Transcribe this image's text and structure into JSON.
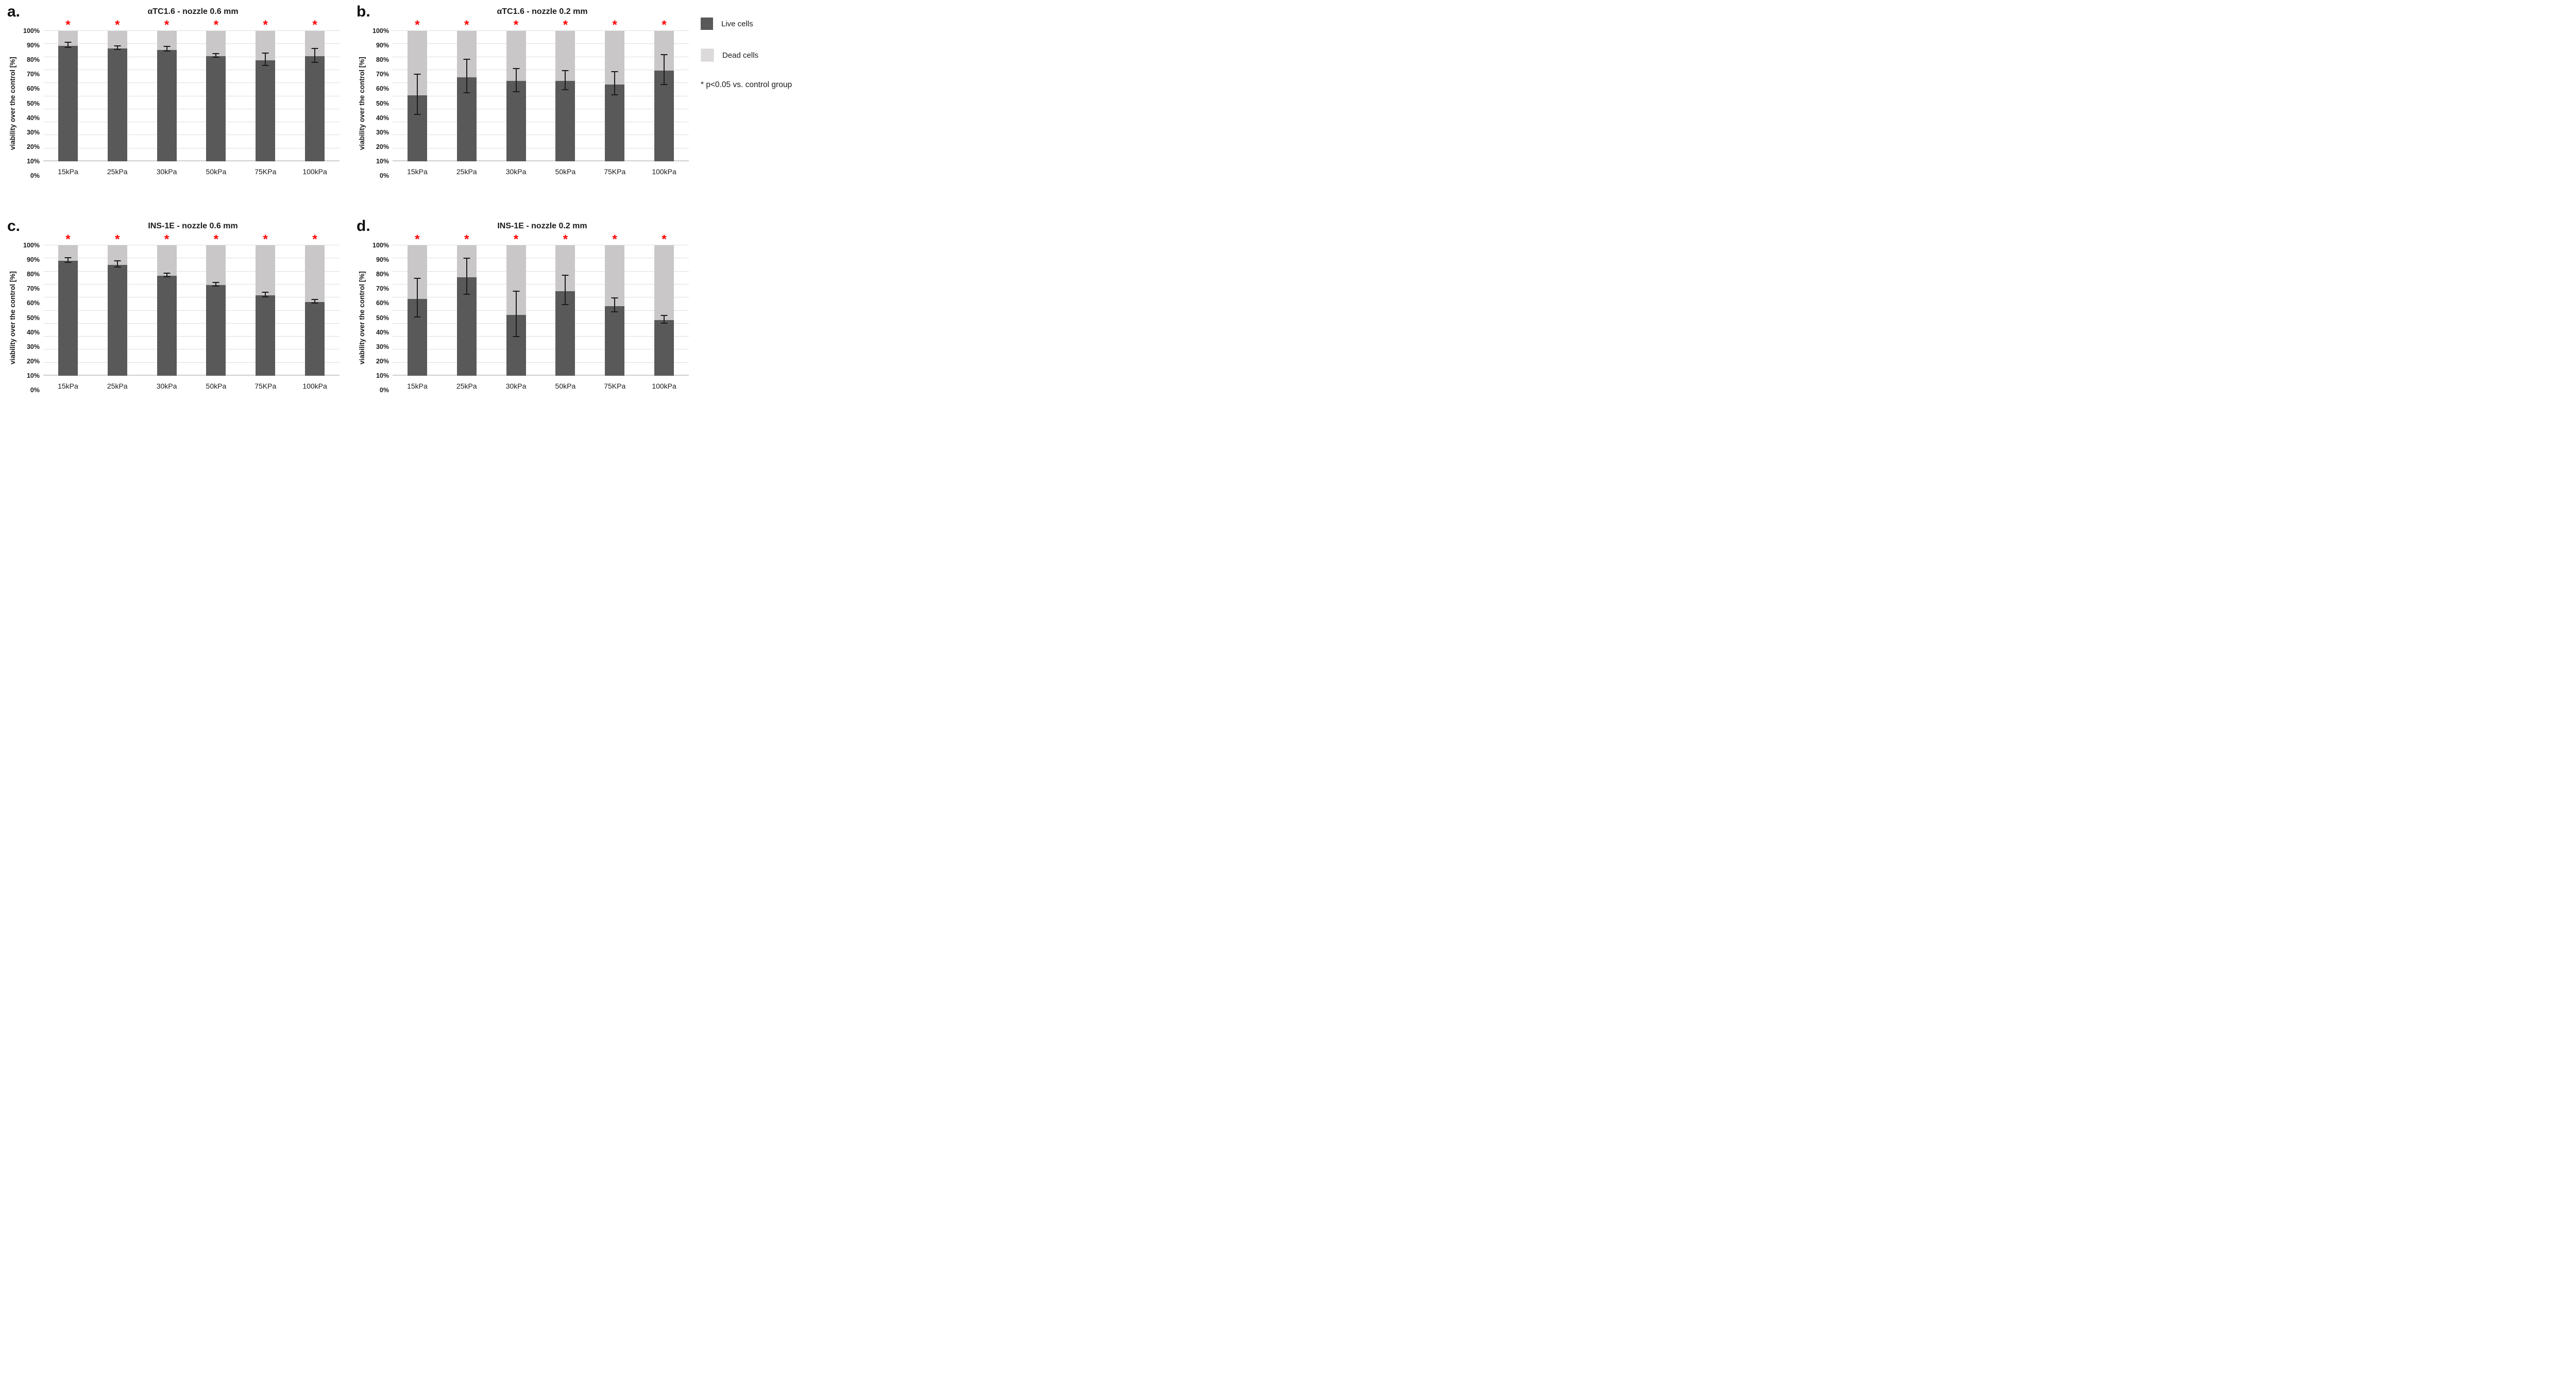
{
  "axis": {
    "ylabel": "viability over the control [%]",
    "yticks": [
      "0%",
      "10%",
      "20%",
      "30%",
      "40%",
      "50%",
      "60%",
      "70%",
      "80%",
      "90%",
      "100%"
    ],
    "ymin": 0,
    "ymax": 100,
    "grid": true
  },
  "categories": [
    "15kPa",
    "25kPa",
    "30kPa",
    "50kPa",
    "75KPa",
    "100kPa"
  ],
  "legend": {
    "items": [
      {
        "label": "Live cells",
        "color": "#595959"
      },
      {
        "label": "Dead cells",
        "color": "#d2d0d0"
      }
    ]
  },
  "significance_note": "* p<0.05 vs. control group",
  "colors": {
    "live": "#595959",
    "dead": "#c9c7c7",
    "asterisk": "#ff0000",
    "error_bar": "#1c1c1c",
    "gridline": "#dedede"
  },
  "chart_data": [
    {
      "type": "bar",
      "stacked": true,
      "panel_label": "a.",
      "title": "αTC1.6 - nozzle 0.6 mm",
      "categories": [
        "15kPa",
        "25kPa",
        "30kPa",
        "50kPa",
        "75KPa",
        "100kPa"
      ],
      "series": [
        {
          "name": "Live cells",
          "values": [
            88.5,
            86.5,
            85.5,
            80.5,
            77.5,
            80.5
          ]
        },
        {
          "name": "Dead cells",
          "values": [
            11.5,
            13.5,
            14.5,
            19.5,
            22.5,
            19.5
          ]
        }
      ],
      "error_bars_pct": [
        1.5,
        1.0,
        1.5,
        1.0,
        4.5,
        5.0
      ],
      "significant": [
        true,
        true,
        true,
        true,
        true,
        true
      ],
      "xlabel": "",
      "ylabel": "viability over the control [%]",
      "ylim": [
        0,
        100
      ]
    },
    {
      "type": "bar",
      "stacked": true,
      "panel_label": "b.",
      "title": "αTC1.6 - nozzle 0.2 mm",
      "categories": [
        "15kPa",
        "25kPa",
        "30kPa",
        "50kPa",
        "75KPa",
        "100kPa"
      ],
      "series": [
        {
          "name": "Live cells",
          "values": [
            50.5,
            64.5,
            61.5,
            61.5,
            59.0,
            69.5
          ]
        },
        {
          "name": "Dead cells",
          "values": [
            49.5,
            35.5,
            38.5,
            38.5,
            41.0,
            30.5
          ]
        }
      ],
      "error_bars_pct": [
        15.0,
        12.5,
        8.5,
        7.0,
        8.5,
        11.0
      ],
      "significant": [
        true,
        true,
        true,
        true,
        true,
        true
      ],
      "xlabel": "",
      "ylabel": "viability over the control [%]",
      "ylim": [
        0,
        100
      ]
    },
    {
      "type": "bar",
      "stacked": true,
      "panel_label": "c.",
      "title": "INS-1E - nozzle 0.6 mm",
      "categories": [
        "15kPa",
        "25kPa",
        "30kPa",
        "50kPa",
        "75KPa",
        "100kPa"
      ],
      "series": [
        {
          "name": "Live cells",
          "values": [
            88.0,
            85.0,
            76.5,
            69.5,
            61.5,
            56.5
          ]
        },
        {
          "name": "Dead cells",
          "values": [
            12.0,
            15.0,
            23.5,
            30.5,
            38.5,
            43.5
          ]
        }
      ],
      "error_bars_pct": [
        1.5,
        2.0,
        1.0,
        1.0,
        1.5,
        1.0
      ],
      "significant": [
        true,
        true,
        true,
        true,
        true,
        true
      ],
      "xlabel": "",
      "ylabel": "viability over the control [%]",
      "ylim": [
        0,
        100
      ]
    },
    {
      "type": "bar",
      "stacked": true,
      "panel_label": "d.",
      "title": "INS-1E - nozzle 0.2 mm",
      "categories": [
        "15kPa",
        "25kPa",
        "30kPa",
        "50kPa",
        "75KPa",
        "100kPa"
      ],
      "series": [
        {
          "name": "Live cells",
          "values": [
            59.0,
            75.5,
            46.5,
            65.0,
            53.5,
            42.5
          ]
        },
        {
          "name": "Dead cells",
          "values": [
            41.0,
            24.5,
            53.5,
            35.0,
            46.5,
            57.5
          ]
        }
      ],
      "error_bars_pct": [
        14.5,
        13.5,
        17.0,
        11.0,
        5.0,
        2.5
      ],
      "significant": [
        true,
        true,
        true,
        true,
        true,
        true
      ],
      "xlabel": "",
      "ylabel": "viability over the control [%]",
      "ylim": [
        0,
        100
      ]
    }
  ]
}
